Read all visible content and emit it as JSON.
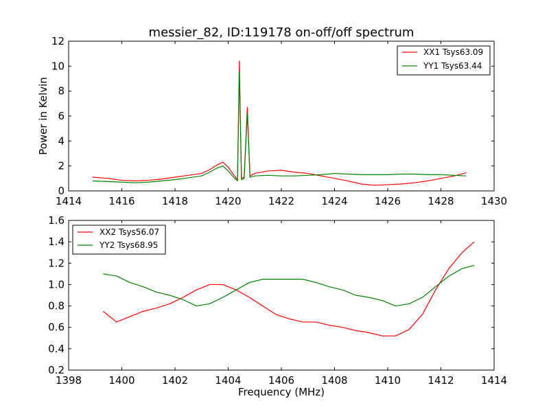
{
  "figure": {
    "title": "messier_82, ID:119178 on-off/off spectrum"
  },
  "chart_data": [
    {
      "type": "line",
      "title": "messier_82, ID:119178 on-off/off spectrum",
      "xlabel": "",
      "ylabel": "Power in Kelvin",
      "xlim": [
        1414,
        1430
      ],
      "ylim": [
        0,
        12
      ],
      "xticks": [
        1414,
        1416,
        1418,
        1420,
        1422,
        1424,
        1426,
        1428,
        1430
      ],
      "yticks": [
        0,
        2,
        4,
        6,
        8,
        10,
        12
      ],
      "grid": false,
      "legend_position": "top-right",
      "series": [
        {
          "name": "XX1 Tsys63.09",
          "color": "#ff0000",
          "x": [
            1414.9,
            1415.5,
            1416.0,
            1416.5,
            1417.0,
            1417.5,
            1418.0,
            1418.5,
            1419.0,
            1419.3,
            1419.6,
            1419.8,
            1420.0,
            1420.2,
            1420.35,
            1420.42,
            1420.5,
            1420.6,
            1420.72,
            1420.82,
            1421.0,
            1421.5,
            1422.0,
            1422.5,
            1423.0,
            1423.5,
            1424.0,
            1424.5,
            1425.0,
            1425.5,
            1426.0,
            1426.5,
            1427.0,
            1427.5,
            1428.0,
            1428.5,
            1428.95
          ],
          "y": [
            1.1,
            1.0,
            0.85,
            0.8,
            0.85,
            0.95,
            1.1,
            1.25,
            1.4,
            1.7,
            2.1,
            2.3,
            1.9,
            1.3,
            0.9,
            10.4,
            1.0,
            1.1,
            6.7,
            1.2,
            1.4,
            1.6,
            1.65,
            1.5,
            1.4,
            1.2,
            1.0,
            0.8,
            0.55,
            0.45,
            0.5,
            0.55,
            0.65,
            0.8,
            1.0,
            1.2,
            1.45
          ]
        },
        {
          "name": "YY1 Tsys63.44",
          "color": "#008000",
          "x": [
            1414.9,
            1415.5,
            1416.0,
            1416.5,
            1417.0,
            1417.5,
            1418.0,
            1418.5,
            1419.0,
            1419.3,
            1419.6,
            1419.8,
            1420.0,
            1420.2,
            1420.35,
            1420.42,
            1420.5,
            1420.6,
            1420.72,
            1420.82,
            1421.0,
            1421.5,
            1422.0,
            1422.5,
            1423.0,
            1423.5,
            1424.0,
            1424.5,
            1425.0,
            1425.5,
            1426.0,
            1426.5,
            1427.0,
            1427.5,
            1428.0,
            1428.5,
            1428.95
          ],
          "y": [
            0.8,
            0.75,
            0.7,
            0.65,
            0.7,
            0.8,
            0.9,
            1.05,
            1.2,
            1.5,
            1.85,
            2.0,
            1.6,
            1.1,
            0.8,
            9.6,
            0.9,
            1.0,
            6.2,
            1.1,
            1.2,
            1.25,
            1.2,
            1.2,
            1.25,
            1.3,
            1.4,
            1.35,
            1.3,
            1.3,
            1.3,
            1.35,
            1.35,
            1.3,
            1.3,
            1.25,
            1.2
          ]
        }
      ]
    },
    {
      "type": "line",
      "title": "",
      "xlabel": "Frequency (MHz)",
      "ylabel": "",
      "xlim": [
        1398,
        1414
      ],
      "ylim": [
        0.2,
        1.6
      ],
      "xticks": [
        1398,
        1400,
        1402,
        1404,
        1406,
        1408,
        1410,
        1412,
        1414
      ],
      "yticks": [
        0.2,
        0.4,
        0.6,
        0.8,
        1.0,
        1.2,
        1.4,
        1.6
      ],
      "grid": false,
      "legend_position": "top-left",
      "series": [
        {
          "name": "XX2 Tsys56.07",
          "color": "#ff0000",
          "x": [
            1399.3,
            1399.8,
            1400.3,
            1400.8,
            1401.3,
            1401.8,
            1402.3,
            1402.8,
            1403.3,
            1403.8,
            1404.3,
            1404.8,
            1405.3,
            1405.8,
            1406.3,
            1406.8,
            1407.3,
            1407.8,
            1408.3,
            1408.8,
            1409.3,
            1409.8,
            1410.3,
            1410.8,
            1411.3,
            1411.8,
            1412.3,
            1412.8,
            1413.25
          ],
          "y": [
            0.75,
            0.65,
            0.7,
            0.75,
            0.78,
            0.82,
            0.88,
            0.95,
            1.0,
            1.0,
            0.95,
            0.88,
            0.8,
            0.72,
            0.68,
            0.65,
            0.65,
            0.62,
            0.6,
            0.57,
            0.55,
            0.52,
            0.52,
            0.58,
            0.72,
            0.95,
            1.15,
            1.3,
            1.4
          ]
        },
        {
          "name": "YY2 Tsys68.95",
          "color": "#008000",
          "x": [
            1399.3,
            1399.8,
            1400.3,
            1400.8,
            1401.3,
            1401.8,
            1402.3,
            1402.8,
            1403.3,
            1403.8,
            1404.3,
            1404.8,
            1405.3,
            1405.8,
            1406.3,
            1406.8,
            1407.3,
            1407.8,
            1408.3,
            1408.8,
            1409.3,
            1409.8,
            1410.3,
            1410.8,
            1411.3,
            1411.8,
            1412.3,
            1412.8,
            1413.25
          ],
          "y": [
            1.1,
            1.08,
            1.02,
            0.98,
            0.93,
            0.9,
            0.86,
            0.8,
            0.82,
            0.88,
            0.95,
            1.02,
            1.05,
            1.05,
            1.05,
            1.05,
            1.02,
            0.98,
            0.95,
            0.9,
            0.88,
            0.85,
            0.8,
            0.82,
            0.88,
            0.98,
            1.08,
            1.15,
            1.18
          ]
        }
      ]
    }
  ]
}
